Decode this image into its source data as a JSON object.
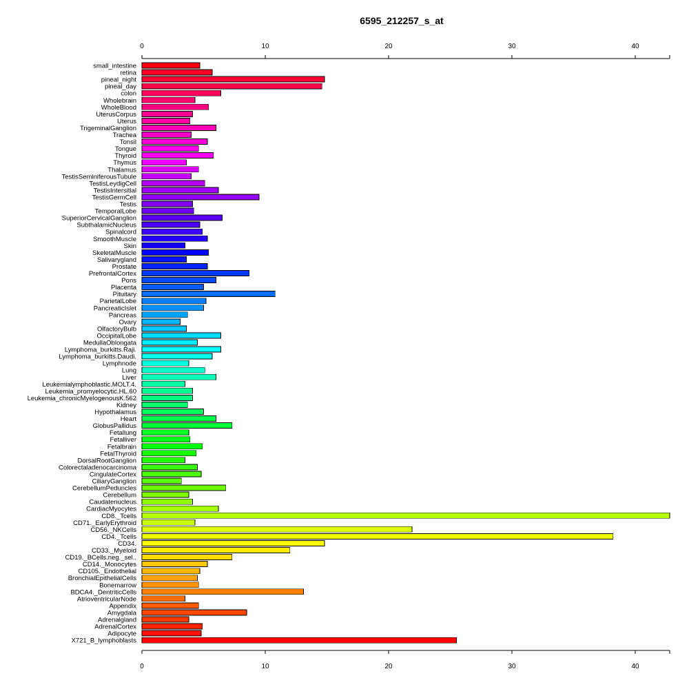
{
  "chart_data": {
    "type": "bar",
    "orientation": "horizontal",
    "title": "6595_212257_s_at",
    "xlabel": "",
    "ylabel": "",
    "xlim": [
      0,
      43
    ],
    "xticks": [
      "0",
      "10",
      "20",
      "30",
      "40"
    ],
    "axes": [
      "top",
      "bottom"
    ],
    "grid": false,
    "legend": "none",
    "color_scheme": "rainbow",
    "categories": [
      "small_intestine",
      "retina",
      "pineal_night",
      "pineal_day",
      "colon",
      "Wholebrain",
      "WholeBlood",
      "UterusCorpus",
      "Uterus",
      "TrigeminalGanglion",
      "Trachea",
      "Tonsil",
      "Tongue",
      "Thyroid",
      "Thymus",
      "Thalamus",
      "TestisSeminiferousTubule",
      "TestisLeydigCell",
      "TestisIntersitial",
      "TestisGermCell",
      "Testis",
      "TemporalLobe",
      "SuperiorCervicalGanglion",
      "SubthalamicNucleus",
      "Spinalcord",
      "SmoothMuscle",
      "Skin",
      "SkeletalMuscle",
      "Salivarygland",
      "Prostate",
      "PrefrontalCortex",
      "Pons",
      "Placenta",
      "Pituitary",
      "ParietalLobe",
      "PancreaticIslet",
      "Pancreas",
      "Ovary",
      "OlfactoryBulb",
      "OccipitalLobe",
      "MedullaOblongata",
      "Lymphoma_burkitts.Raji.",
      "Lymphoma_burkitts.Daudi.",
      "Lymphnode",
      "Lung",
      "Liver",
      "Leukemialymphoblastic.MOLT.4.",
      "Leukemia_promyelocytic.HL.60",
      "Leukemia_chronicMyelogenousK.562",
      "Kidney",
      "Hypothalamus",
      "Heart",
      "GlobusPallidus",
      "Fetallung",
      "Fetalliver",
      "Fetalbrain",
      "FetalThyroid",
      "DorsalRootGanglion",
      "Colorectaladenocarcinoma",
      "CingulateCortex",
      "CiliaryGanglion",
      "CerebellumPeduncles",
      "Cerebellum",
      "Caudatenucleus",
      "CardiacMyocytes",
      "CD8._Tcells",
      "CD71._EarlyErythroid",
      "CD56._NKCells",
      "CD4._Tcells",
      "CD34.",
      "CD33._Myeloid",
      "CD19._BCells.neg._sel..",
      "CD14._Monocytes",
      "CD105._Endothelial",
      "BronchialEpithelialCells",
      "Bonemarrow",
      "BDCA4._DentriticCells",
      "AtrioventricularNode",
      "Appendix",
      "Amygdala",
      "Adrenalgland",
      "AdrenalCortex",
      "Adipocyte",
      "X721_B_lymphoblasts"
    ],
    "values": [
      4.7,
      5.7,
      14.8,
      14.6,
      6.4,
      4.3,
      5.4,
      4.1,
      3.9,
      6.0,
      4.0,
      5.3,
      4.6,
      5.8,
      3.6,
      4.6,
      4.0,
      5.1,
      6.2,
      9.5,
      4.1,
      4.2,
      6.5,
      4.7,
      4.9,
      5.3,
      3.5,
      5.4,
      3.6,
      5.3,
      8.7,
      6.0,
      5.0,
      10.8,
      5.2,
      5.0,
      3.7,
      3.1,
      3.6,
      6.4,
      4.5,
      6.4,
      5.7,
      3.8,
      5.1,
      6.0,
      3.5,
      4.1,
      4.1,
      3.7,
      5.0,
      6.0,
      7.3,
      3.8,
      3.9,
      4.9,
      4.4,
      3.5,
      4.5,
      4.8,
      3.2,
      6.8,
      3.8,
      4.1,
      6.2,
      42.8,
      4.3,
      21.9,
      38.2,
      14.8,
      12.0,
      7.3,
      5.3,
      4.7,
      4.5,
      4.6,
      13.1,
      3.5,
      4.6,
      8.5,
      3.8,
      4.9,
      4.8,
      25.5
    ]
  }
}
